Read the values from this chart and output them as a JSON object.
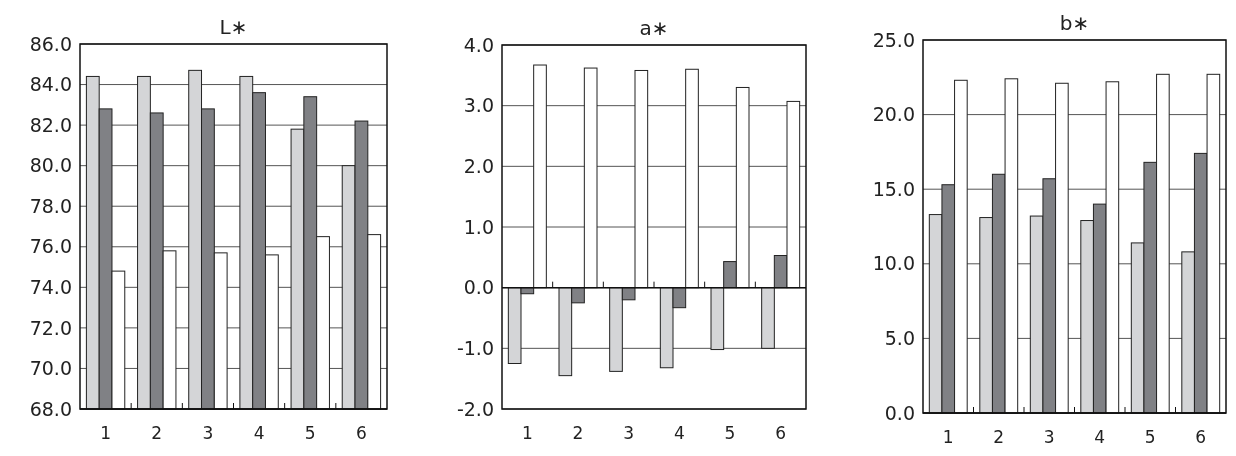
{
  "chart_data": [
    {
      "type": "bar",
      "title": "L∗",
      "categories": [
        "1",
        "2",
        "3",
        "4",
        "5",
        "6"
      ],
      "series": [
        {
          "color": "#d4d5d7",
          "values": [
            84.4,
            84.4,
            84.7,
            84.4,
            81.8,
            80.0
          ]
        },
        {
          "color": "#808185",
          "values": [
            82.8,
            82.6,
            82.8,
            83.6,
            83.4,
            82.2
          ]
        },
        {
          "color": "#ffffff",
          "values": [
            74.8,
            75.8,
            75.7,
            75.6,
            76.5,
            76.6
          ]
        }
      ],
      "ylim": [
        68,
        86
      ],
      "yticks": [
        {
          "value": 68,
          "label": "68.0"
        },
        {
          "value": 70,
          "label": "70.0"
        },
        {
          "value": 72,
          "label": "72.0"
        },
        {
          "value": 74,
          "label": "74.0"
        },
        {
          "value": 76,
          "label": "76.0"
        },
        {
          "value": 78,
          "label": "78.0"
        },
        {
          "value": 80,
          "label": "80.0"
        },
        {
          "value": 82,
          "label": "82.0"
        },
        {
          "value": 84,
          "label": "84.0"
        },
        {
          "value": 86,
          "label": "86.0"
        }
      ],
      "grid": "y"
    },
    {
      "type": "bar",
      "title": "a∗",
      "categories": [
        "1",
        "2",
        "3",
        "4",
        "5",
        "6"
      ],
      "series": [
        {
          "color": "#d4d5d7",
          "values": [
            -1.25,
            -1.45,
            -1.38,
            -1.32,
            -1.02,
            -1.0
          ]
        },
        {
          "color": "#808185",
          "values": [
            -0.1,
            -0.25,
            -0.2,
            -0.33,
            0.43,
            0.53
          ]
        },
        {
          "color": "#ffffff",
          "values": [
            3.67,
            3.62,
            3.58,
            3.6,
            3.3,
            3.07
          ]
        }
      ],
      "ylim": [
        -2,
        4
      ],
      "yticks": [
        {
          "value": -2,
          "label": "-2.0"
        },
        {
          "value": -1,
          "label": "-1.0"
        },
        {
          "value": 0,
          "label": "0.0"
        },
        {
          "value": 1,
          "label": "1.0"
        },
        {
          "value": 2,
          "label": "2.0"
        },
        {
          "value": 3,
          "label": "3.0"
        },
        {
          "value": 4,
          "label": "4.0"
        }
      ],
      "grid": "y"
    },
    {
      "type": "bar",
      "title": "b∗",
      "categories": [
        "1",
        "2",
        "3",
        "4",
        "5",
        "6"
      ],
      "series": [
        {
          "color": "#d4d5d7",
          "values": [
            13.3,
            13.1,
            13.2,
            12.9,
            11.4,
            10.8
          ]
        },
        {
          "color": "#808185",
          "values": [
            15.3,
            16.0,
            15.7,
            14.0,
            16.8,
            17.4
          ]
        },
        {
          "color": "#ffffff",
          "values": [
            22.3,
            22.4,
            22.1,
            22.2,
            22.7,
            22.7
          ]
        }
      ],
      "ylim": [
        0,
        25
      ],
      "yticks": [
        {
          "value": 0,
          "label": "0.0"
        },
        {
          "value": 5,
          "label": "5.0"
        },
        {
          "value": 10,
          "label": "10.0"
        },
        {
          "value": 15,
          "label": "15.0"
        },
        {
          "value": 20,
          "label": "20.0"
        },
        {
          "value": 25,
          "label": "25.0"
        }
      ],
      "grid": "y"
    }
  ]
}
